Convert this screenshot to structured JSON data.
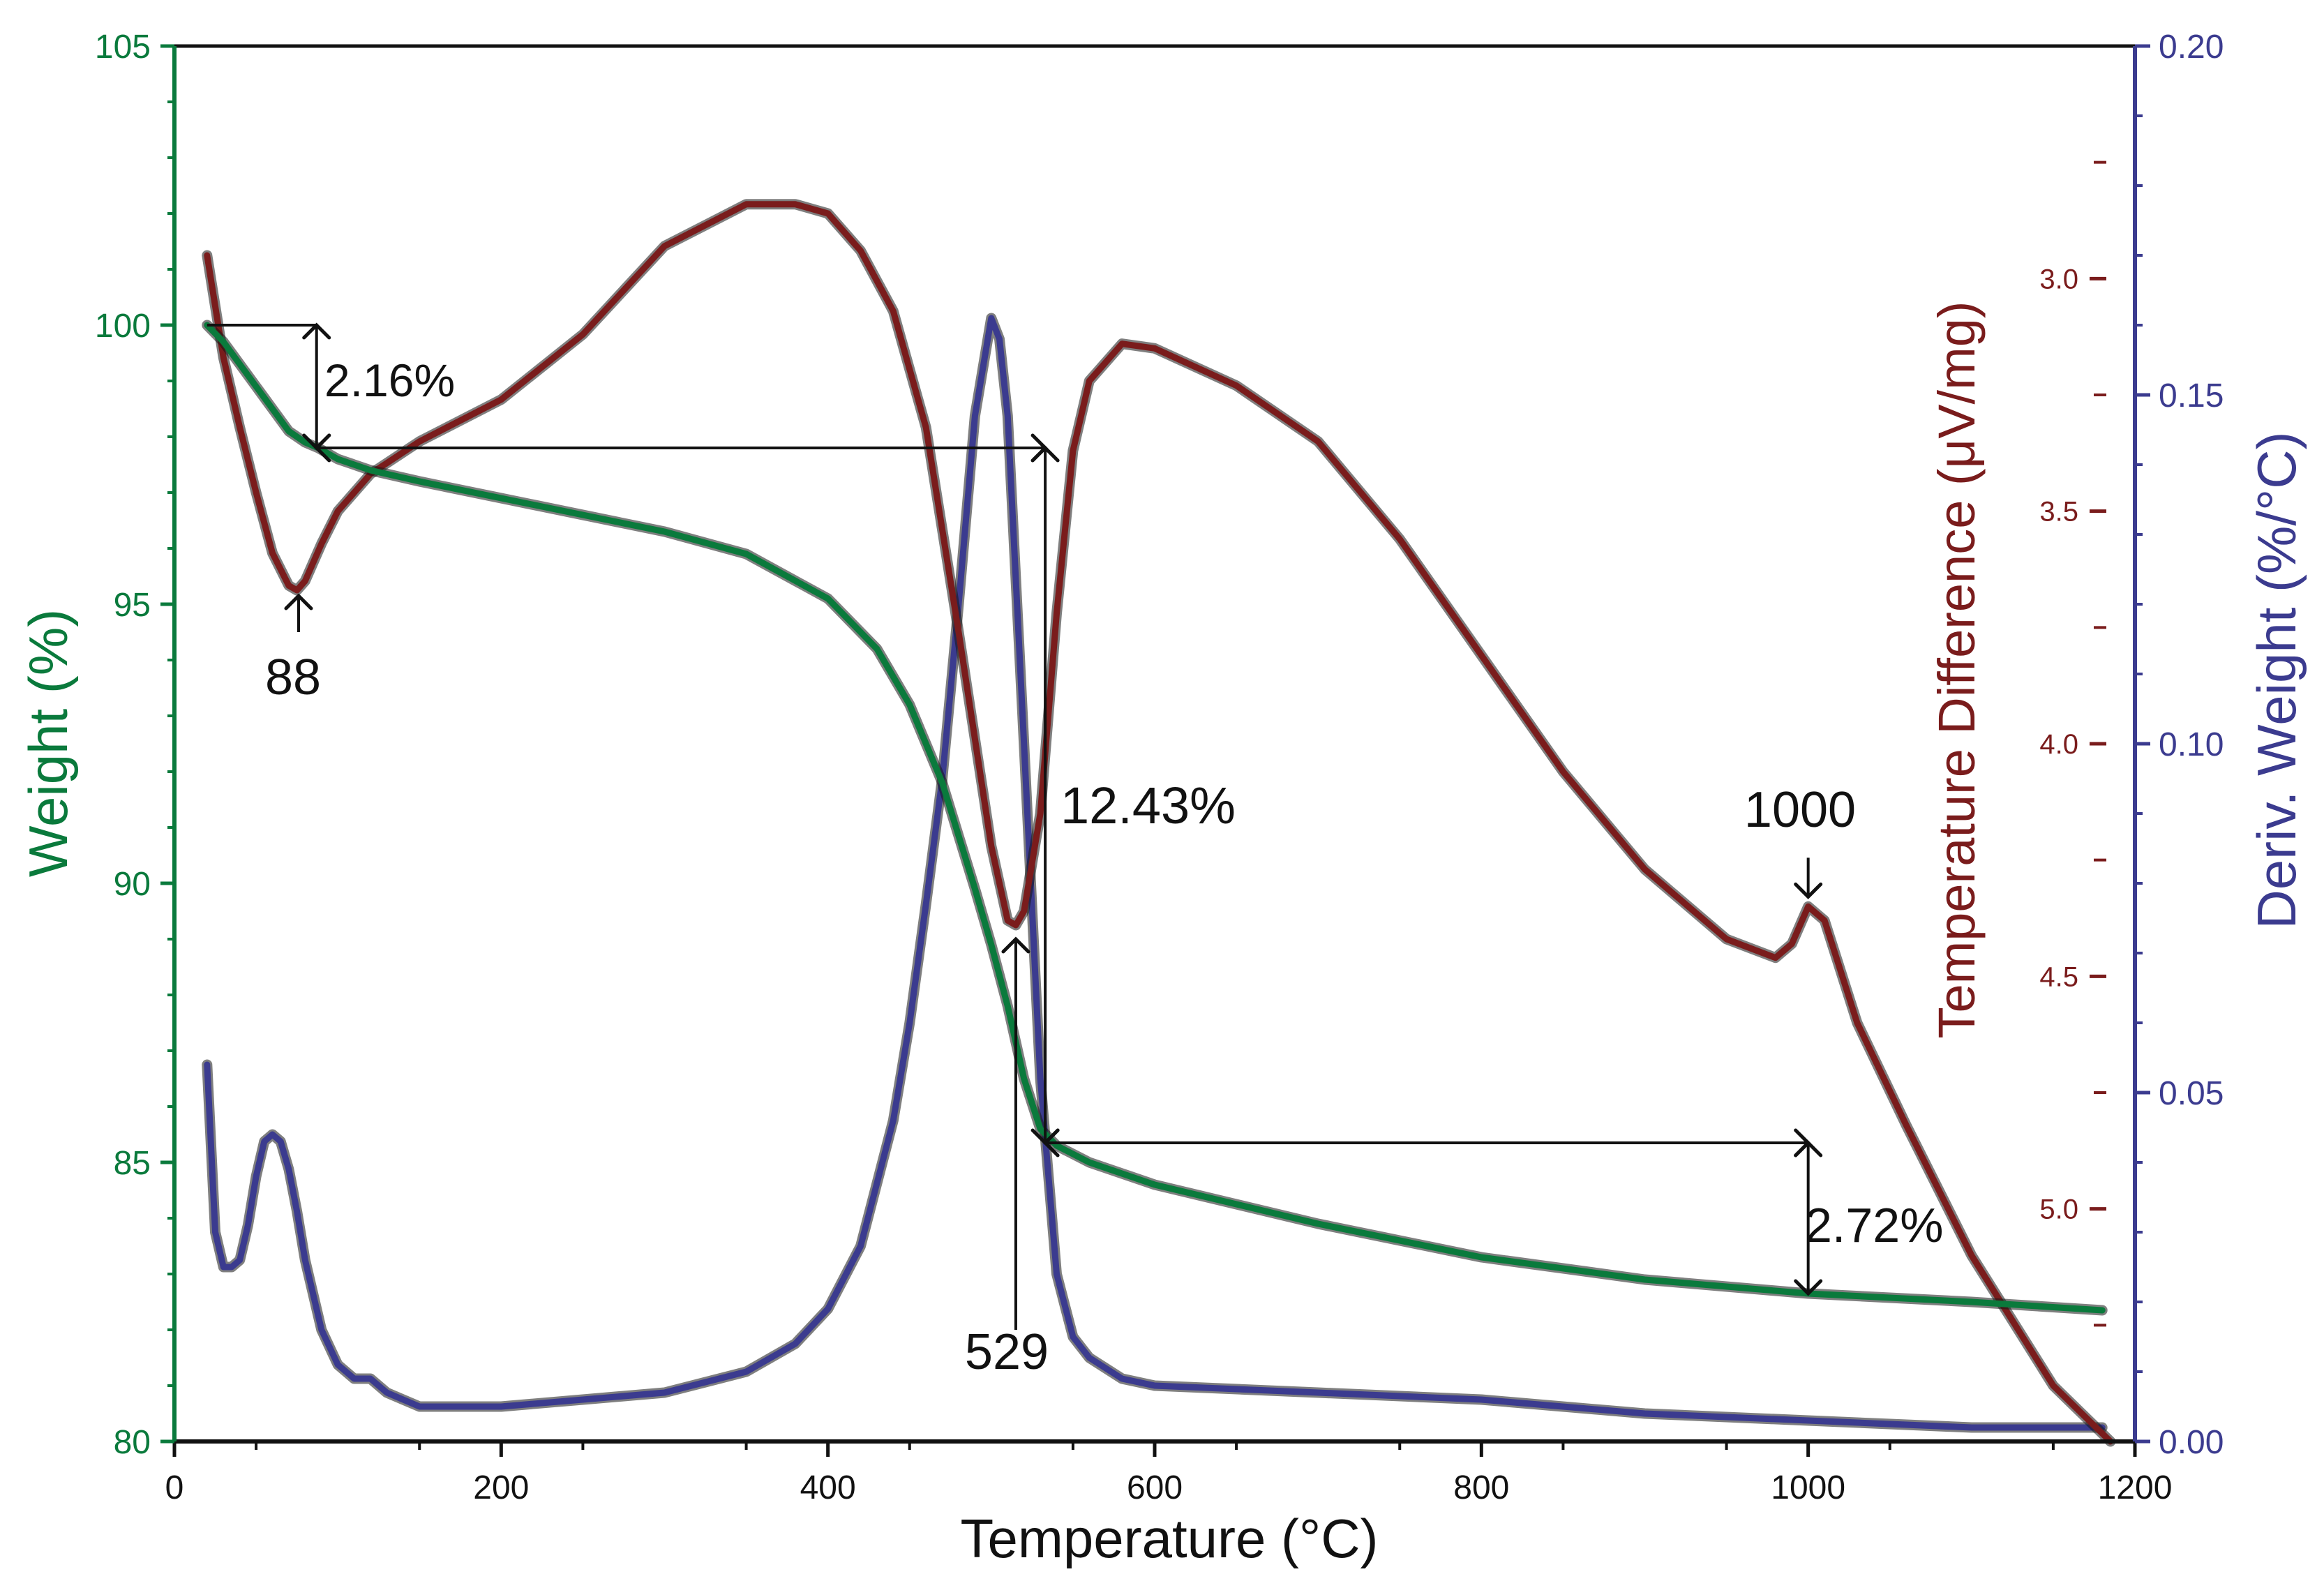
{
  "chart_data": {
    "type": "line",
    "xlabel": "Temperature (°C)",
    "xlim": [
      0,
      1200
    ],
    "xticks": [
      0,
      200,
      400,
      600,
      800,
      1000,
      1200
    ],
    "axes": {
      "weight": {
        "label": "Weight (%)",
        "ylim": [
          80,
          105
        ],
        "ticks": [
          80,
          85,
          90,
          95,
          100,
          105
        ],
        "color": "#0a7a3c"
      },
      "temp_diff": {
        "label": "Temperature Difference (μV/mg)",
        "ylim_inverted": [
          5.5,
          2.5
        ],
        "ticks": [
          3.0,
          3.5,
          4.0,
          4.5,
          5.0
        ],
        "tick_labels": [
          "3.0",
          "3.5",
          "4.0",
          "4.5",
          "5.0"
        ],
        "color": "#7a1c1c"
      },
      "deriv": {
        "label": "Deriv. Weight (%/°C)",
        "ylim": [
          0.0,
          0.2
        ],
        "ticks": [
          0.0,
          0.05,
          0.1,
          0.15,
          0.2
        ],
        "tick_labels": [
          "0.00",
          "0.05",
          "0.10",
          "0.15",
          "0.20"
        ],
        "color": "#3b3b8f"
      }
    },
    "series": [
      {
        "name": "Weight",
        "axis": "weight",
        "color": "#0a7a3c",
        "x": [
          20,
          30,
          40,
          50,
          60,
          70,
          80,
          88,
          100,
          120,
          150,
          200,
          250,
          300,
          350,
          400,
          430,
          450,
          470,
          490,
          500,
          510,
          520,
          530,
          540,
          560,
          600,
          700,
          800,
          900,
          1000,
          1100,
          1180
        ],
        "y": [
          100.0,
          99.7,
          99.3,
          98.9,
          98.5,
          98.1,
          97.9,
          97.8,
          97.6,
          97.4,
          97.2,
          96.9,
          96.6,
          96.3,
          95.9,
          95.1,
          94.2,
          93.2,
          91.8,
          89.9,
          88.9,
          87.8,
          86.5,
          85.6,
          85.3,
          85.0,
          84.6,
          83.9,
          83.3,
          82.9,
          82.65,
          82.5,
          82.35
        ]
      },
      {
        "name": "Temperature Difference",
        "axis": "temp_diff",
        "color": "#7a1c1c",
        "x": [
          20,
          30,
          40,
          50,
          60,
          70,
          75,
          80,
          90,
          100,
          120,
          150,
          200,
          250,
          300,
          350,
          380,
          400,
          420,
          440,
          460,
          480,
          500,
          510,
          515,
          520,
          530,
          540,
          550,
          560,
          580,
          600,
          650,
          700,
          750,
          800,
          850,
          900,
          950,
          980,
          990,
          1000,
          1010,
          1030,
          1060,
          1100,
          1150,
          1185
        ],
        "y": [
          2.95,
          3.17,
          3.32,
          3.46,
          3.59,
          3.66,
          3.67,
          3.65,
          3.57,
          3.5,
          3.42,
          3.35,
          3.26,
          3.12,
          2.93,
          2.84,
          2.84,
          2.86,
          2.94,
          3.07,
          3.32,
          3.76,
          4.22,
          4.38,
          4.39,
          4.36,
          4.15,
          3.72,
          3.37,
          3.22,
          3.14,
          3.15,
          3.23,
          3.35,
          3.56,
          3.81,
          4.06,
          4.27,
          4.42,
          4.46,
          4.43,
          4.35,
          4.38,
          4.6,
          4.82,
          5.1,
          5.38,
          5.5
        ]
      },
      {
        "name": "Deriv. Weight",
        "axis": "deriv",
        "color": "#3b3b8f",
        "x": [
          20,
          25,
          30,
          35,
          40,
          45,
          50,
          55,
          60,
          65,
          70,
          75,
          80,
          90,
          100,
          110,
          120,
          130,
          140,
          150,
          200,
          250,
          300,
          350,
          380,
          400,
          420,
          440,
          450,
          460,
          470,
          480,
          490,
          500,
          505,
          510,
          520,
          530,
          540,
          550,
          560,
          580,
          600,
          700,
          800,
          900,
          1000,
          1100,
          1180
        ],
        "y": [
          0.054,
          0.03,
          0.025,
          0.025,
          0.026,
          0.031,
          0.038,
          0.043,
          0.044,
          0.043,
          0.039,
          0.033,
          0.026,
          0.016,
          0.011,
          0.009,
          0.009,
          0.007,
          0.006,
          0.005,
          0.005,
          0.006,
          0.007,
          0.01,
          0.014,
          0.019,
          0.028,
          0.046,
          0.06,
          0.077,
          0.095,
          0.12,
          0.147,
          0.161,
          0.158,
          0.147,
          0.1,
          0.052,
          0.024,
          0.015,
          0.012,
          0.009,
          0.008,
          0.007,
          0.006,
          0.004,
          0.003,
          0.002,
          0.002
        ]
      }
    ],
    "annotations": [
      {
        "text": "2.16%"
      },
      {
        "text": "88"
      },
      {
        "text": "12.43%"
      },
      {
        "text": "529"
      },
      {
        "text": "1000"
      },
      {
        "text": "2.72%"
      }
    ]
  }
}
